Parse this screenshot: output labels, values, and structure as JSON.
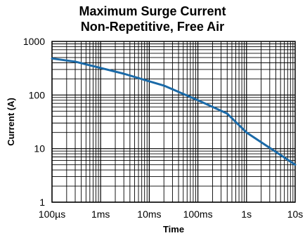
{
  "chart_data": {
    "type": "line",
    "title_lines": [
      "Maximum Surge Current",
      "Non-Repetitive, Free Air"
    ],
    "xlabel": "Time",
    "ylabel": "Current (A)",
    "x_scale": "log",
    "y_scale": "log",
    "xlim": [
      0.0001,
      10
    ],
    "ylim": [
      1,
      1000
    ],
    "x_ticks": [
      {
        "value": 0.0001,
        "label": "100µs"
      },
      {
        "value": 0.001,
        "label": "1ms"
      },
      {
        "value": 0.01,
        "label": "10ms"
      },
      {
        "value": 0.1,
        "label": "100ms"
      },
      {
        "value": 1,
        "label": "1s"
      },
      {
        "value": 10,
        "label": "10s"
      }
    ],
    "y_ticks": [
      {
        "value": 1,
        "label": "1"
      },
      {
        "value": 10,
        "label": "10"
      },
      {
        "value": 100,
        "label": "100"
      },
      {
        "value": 1000,
        "label": "1000"
      }
    ],
    "grid": true,
    "series": [
      {
        "color": "#1a6aa8",
        "x": [
          0.0001,
          0.0003,
          0.001,
          0.003,
          0.01,
          0.02,
          0.1,
          0.4,
          1,
          10
        ],
        "y": [
          480,
          420,
          320,
          250,
          180,
          150,
          80,
          45,
          20,
          5
        ]
      }
    ]
  }
}
